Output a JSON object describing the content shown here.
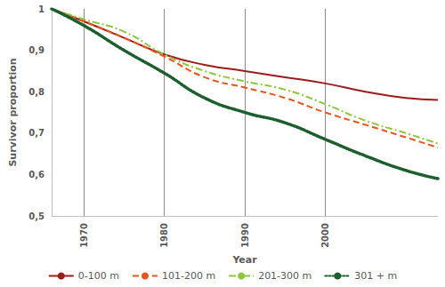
{
  "chart_data": {
    "type": "line",
    "x_label": "Year",
    "y_label": "Survivor proportion",
    "x": [
      1966,
      1970,
      1975,
      1980,
      1985,
      1990,
      1995,
      2000,
      2005,
      2010,
      2014
    ],
    "series": [
      {
        "name": "0-100 m",
        "color": "#9e1b1b",
        "line_style": "solid",
        "values": [
          1.0,
          0.97,
          0.93,
          0.89,
          0.865,
          0.85,
          0.835,
          0.82,
          0.8,
          0.785,
          0.78
        ]
      },
      {
        "name": "101-200 m",
        "color": "#e8561f",
        "line_style": "dashed",
        "values": [
          1.0,
          0.97,
          0.93,
          0.885,
          0.835,
          0.81,
          0.785,
          0.75,
          0.72,
          0.69,
          0.665
        ]
      },
      {
        "name": "201-300 m",
        "color": "#8dc63f",
        "line_style": "dashdot",
        "values": [
          1.0,
          0.975,
          0.945,
          0.89,
          0.85,
          0.825,
          0.805,
          0.77,
          0.73,
          0.7,
          0.675
        ]
      },
      {
        "name": "301 + m",
        "color": "#1d5e2f",
        "line_style": "dotted",
        "values": [
          1.0,
          0.96,
          0.9,
          0.845,
          0.785,
          0.75,
          0.725,
          0.685,
          0.645,
          0.61,
          0.59
        ]
      }
    ],
    "xlim": [
      1966,
      2014
    ],
    "xticks": [
      1970,
      1980,
      1990,
      2000
    ],
    "ylim": [
      0.5,
      1
    ],
    "yticks": [
      {
        "value": 0.5,
        "label": "0,5"
      },
      {
        "value": 0.6,
        "label": "0,6"
      },
      {
        "value": 0.7,
        "label": "0,7"
      },
      {
        "value": 0.8,
        "label": "0,8"
      },
      {
        "value": 0.9,
        "label": "0,9"
      },
      1
    ],
    "grid": "x",
    "legend": "bottom"
  }
}
